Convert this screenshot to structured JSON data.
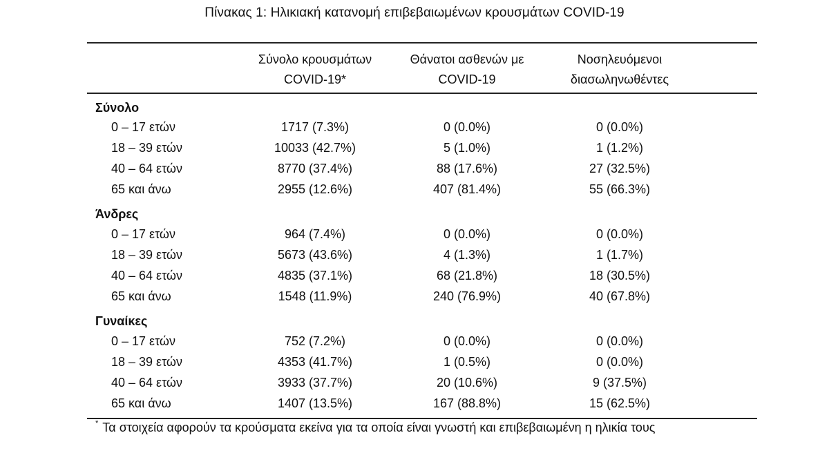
{
  "title": "Πίνακας 1: Ηλικιακή κατανομή επιβεβαιωμένων κρουσμάτων COVID-19",
  "columns": [
    {
      "line1": "Σύνολο κρουσμάτων",
      "line2": "COVID-19*"
    },
    {
      "line1": "Θάνατοι ασθενών με",
      "line2": "COVID-19"
    },
    {
      "line1": "Νοσηλευόμενοι",
      "line2": "διασωληνωθέντες"
    }
  ],
  "sections": [
    {
      "label": "Σύνολο",
      "rows": [
        {
          "age": "0 – 17 ετών",
          "cases": "1717 (7.3%)",
          "deaths": "0 (0.0%)",
          "intubated": "0 (0.0%)"
        },
        {
          "age": "18 – 39 ετών",
          "cases": "10033 (42.7%)",
          "deaths": "5 (1.0%)",
          "intubated": "1 (1.2%)"
        },
        {
          "age": "40 – 64 ετών",
          "cases": "8770 (37.4%)",
          "deaths": "88 (17.6%)",
          "intubated": "27 (32.5%)"
        },
        {
          "age": "65 και άνω",
          "cases": "2955 (12.6%)",
          "deaths": "407 (81.4%)",
          "intubated": "55 (66.3%)"
        }
      ]
    },
    {
      "label": "Άνδρες",
      "rows": [
        {
          "age": "0 – 17 ετών",
          "cases": "964 (7.4%)",
          "deaths": "0 (0.0%)",
          "intubated": "0 (0.0%)"
        },
        {
          "age": "18 – 39 ετών",
          "cases": "5673 (43.6%)",
          "deaths": "4 (1.3%)",
          "intubated": "1 (1.7%)"
        },
        {
          "age": "40 – 64 ετών",
          "cases": "4835 (37.1%)",
          "deaths": "68 (21.8%)",
          "intubated": "18 (30.5%)"
        },
        {
          "age": "65 και άνω",
          "cases": "1548 (11.9%)",
          "deaths": "240 (76.9%)",
          "intubated": "40 (67.8%)"
        }
      ]
    },
    {
      "label": "Γυναίκες",
      "rows": [
        {
          "age": "0 – 17 ετών",
          "cases": "752 (7.2%)",
          "deaths": "0 (0.0%)",
          "intubated": "0 (0.0%)"
        },
        {
          "age": "18 – 39 ετών",
          "cases": "4353 (41.7%)",
          "deaths": "1 (0.5%)",
          "intubated": "0 (0.0%)"
        },
        {
          "age": "40 – 64 ετών",
          "cases": "3933 (37.7%)",
          "deaths": "20 (10.6%)",
          "intubated": "9 (37.5%)"
        },
        {
          "age": "65 και άνω",
          "cases": "1407 (13.5%)",
          "deaths": "167 (88.8%)",
          "intubated": "15 (62.5%)"
        }
      ]
    }
  ],
  "footnote": {
    "marker": "*",
    "text": "Τα στοιχεία αφορούν τα κρούσματα εκείνα για τα οποία είναι γνωστή και επιβεβαιωμένη η ηλικία τους"
  }
}
